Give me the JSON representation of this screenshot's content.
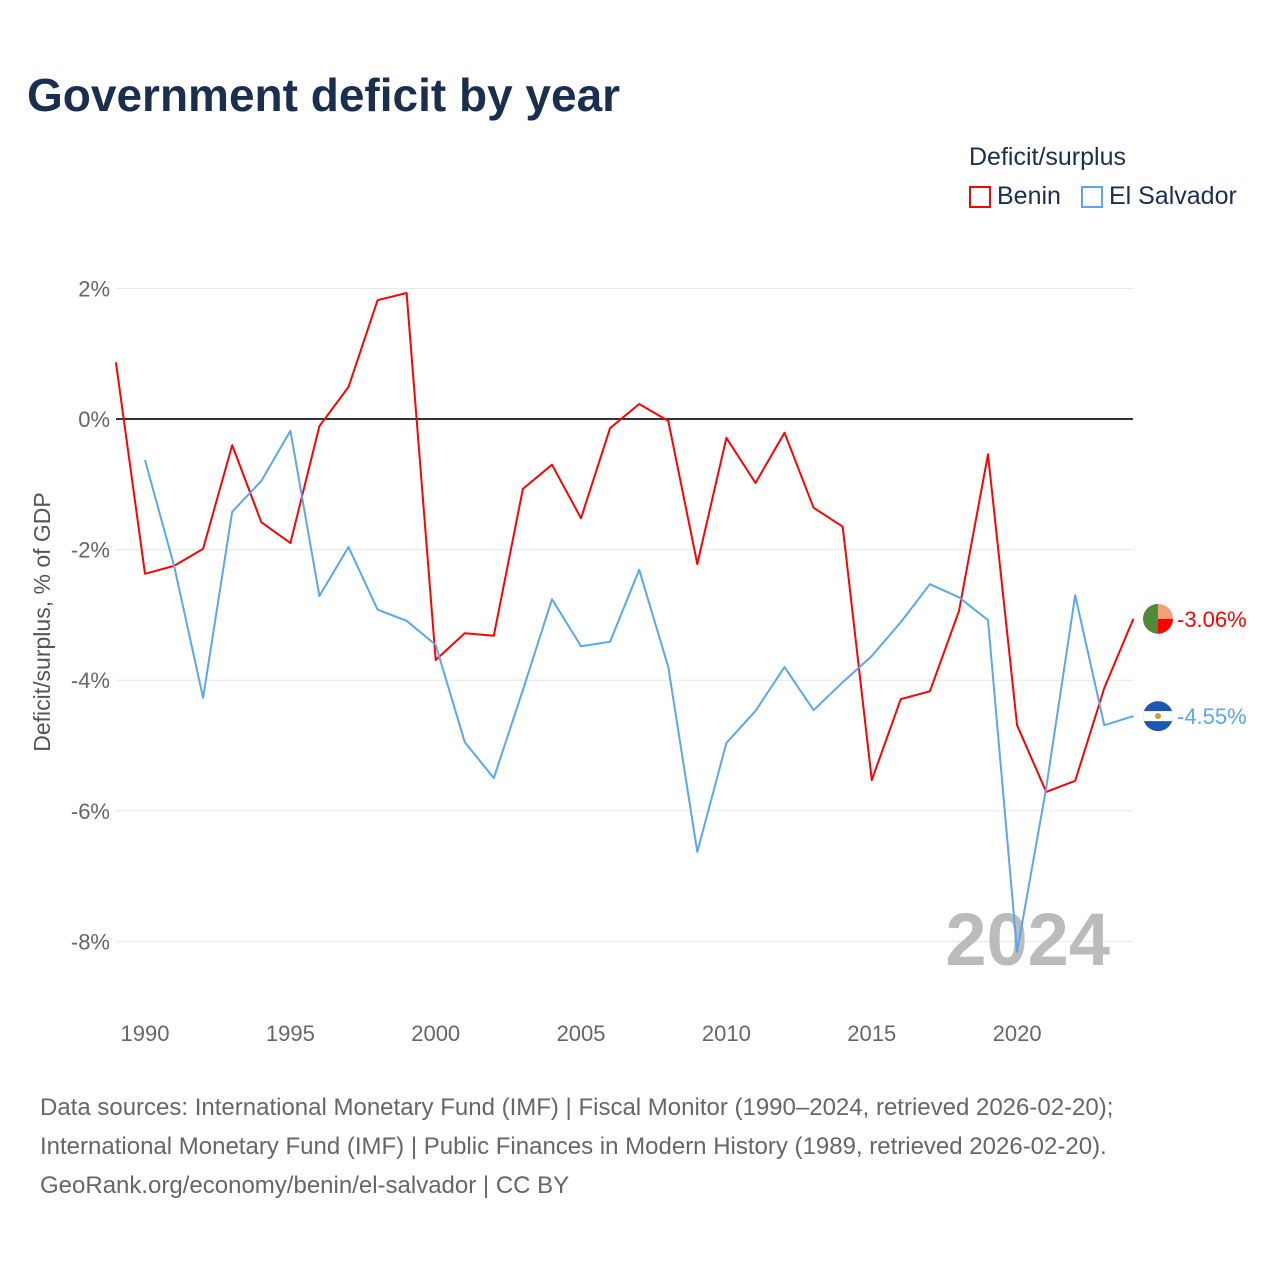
{
  "chart_data": {
    "type": "line",
    "title": "Government deficit by year",
    "ylabel": "Deficit/surplus, % of GDP",
    "xlabel": "",
    "xlim": [
      1989,
      2024
    ],
    "ylim": [
      -9,
      2.4
    ],
    "xticks": [
      1990,
      1995,
      2000,
      2005,
      2010,
      2015,
      2020
    ],
    "yticks": [
      2,
      0,
      -2,
      -4,
      -6,
      -8
    ],
    "ytick_labels": [
      "2%",
      "0%",
      "-2%",
      "-4%",
      "-6%",
      "-8%"
    ],
    "xtick_labels": [
      "1990",
      "1995",
      "2000",
      "2005",
      "2010",
      "2015",
      "2020"
    ],
    "grid": true,
    "legend_title": "Deficit/surplus",
    "legend_position": "top-right",
    "year_watermark": "2024",
    "series": [
      {
        "name": "Benin",
        "color": "#ff0000",
        "end_label": "-3.06%",
        "x": [
          1989,
          1990,
          1991,
          1992,
          1993,
          1994,
          1995,
          1996,
          1997,
          1998,
          1999,
          2000,
          2001,
          2002,
          2003,
          2004,
          2005,
          2006,
          2007,
          2008,
          2009,
          2010,
          2011,
          2012,
          2013,
          2014,
          2015,
          2016,
          2017,
          2018,
          2019,
          2020,
          2021,
          2022,
          2023,
          2024
        ],
        "values": [
          0.87,
          -2.37,
          -2.25,
          -1.99,
          -0.4,
          -1.58,
          -1.9,
          -0.11,
          0.49,
          1.82,
          1.93,
          -3.69,
          -3.28,
          -3.32,
          -1.07,
          -0.7,
          -1.52,
          -0.14,
          0.23,
          -0.03,
          -2.22,
          -0.29,
          -0.98,
          -0.21,
          -1.36,
          -1.65,
          -5.53,
          -4.29,
          -4.17,
          -2.94,
          -0.54,
          -4.69,
          -5.71,
          -5.54,
          -4.12,
          -3.06
        ]
      },
      {
        "name": "El Salvador",
        "color": "#5aa7ee",
        "end_label": "-4.55%",
        "x": [
          1990,
          1991,
          1992,
          1993,
          1994,
          1995,
          1996,
          1997,
          1998,
          1999,
          2000,
          2001,
          2002,
          2003,
          2004,
          2005,
          2006,
          2007,
          2008,
          2009,
          2010,
          2011,
          2012,
          2013,
          2014,
          2015,
          2016,
          2017,
          2018,
          2019,
          2020,
          2021,
          2022,
          2023,
          2024
        ],
        "values": [
          -0.63,
          -2.25,
          -4.27,
          -1.42,
          -0.95,
          -0.18,
          -2.71,
          -1.96,
          -2.92,
          -3.09,
          -3.46,
          -4.95,
          -5.5,
          -4.15,
          -2.76,
          -3.48,
          -3.41,
          -2.31,
          -3.8,
          -6.63,
          -4.96,
          -4.47,
          -3.8,
          -4.46,
          -4.03,
          -3.63,
          -3.11,
          -2.53,
          -2.73,
          -3.08,
          -8.16,
          -5.65,
          -2.7,
          -4.69,
          -4.55
        ]
      }
    ]
  },
  "footer": {
    "line1": "Data sources: International Monetary Fund (IMF) | Fiscal Monitor (1990–2024, retrieved 2026-02-20);",
    "line2": "International Monetary Fund (IMF) | Public Finances in Modern History (1989, retrieved 2026-02-20).",
    "line3": "GeoRank.org/economy/benin/el-salvador | CC BY"
  }
}
